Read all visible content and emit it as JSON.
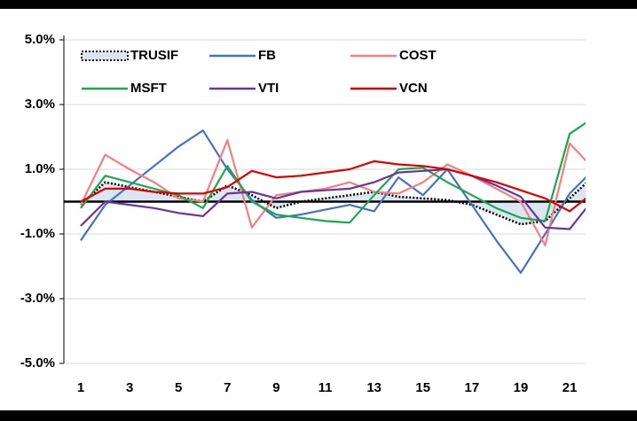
{
  "chart_data": {
    "type": "line",
    "x": [
      1,
      2,
      3,
      4,
      5,
      6,
      7,
      8,
      9,
      10,
      11,
      12,
      13,
      14,
      15,
      16,
      17,
      18,
      19,
      20,
      21,
      22
    ],
    "xlim": [
      0.31,
      21.65
    ],
    "xticks": [
      1,
      3,
      5,
      7,
      9,
      11,
      13,
      15,
      17,
      19,
      21
    ],
    "ylim": [
      -5,
      5
    ],
    "yticks": [
      {
        "value": -5,
        "label": "-5.0%"
      },
      {
        "value": -3,
        "label": "-3.0%"
      },
      {
        "value": -1,
        "label": "-1.0%"
      },
      {
        "value": 1,
        "label": "1.0%"
      },
      {
        "value": 3,
        "label": "3.0%"
      },
      {
        "value": 5,
        "label": "5.0%"
      }
    ],
    "grid": true,
    "series": [
      {
        "name": "TRUSIF",
        "color": "#000000",
        "fill": "#dce6f2",
        "dash": "dotted",
        "values": [
          -0.1,
          0.6,
          0.45,
          0.3,
          0.15,
          0.0,
          0.5,
          0.2,
          -0.2,
          0.0,
          0.1,
          0.2,
          0.3,
          0.15,
          0.1,
          0.05,
          -0.1,
          -0.4,
          -0.7,
          -0.6,
          0.1,
          0.8
        ]
      },
      {
        "name": "FB",
        "color": "#4472c4",
        "values": [
          -1.2,
          -0.1,
          0.5,
          1.1,
          1.7,
          2.2,
          1.0,
          0.05,
          -0.5,
          -0.4,
          -0.25,
          -0.1,
          -0.3,
          0.75,
          0.2,
          1.0,
          -0.1,
          -1.2,
          -2.2,
          -1.0,
          0.25,
          1.0
        ]
      },
      {
        "name": "COST",
        "color": "#f4807d",
        "values": [
          -0.1,
          1.45,
          1.0,
          0.6,
          0.1,
          0.0,
          1.9,
          -0.8,
          0.2,
          0.3,
          0.4,
          0.6,
          0.3,
          0.25,
          0.6,
          1.15,
          0.8,
          0.4,
          0.0,
          -1.35,
          1.8,
          1.0
        ]
      },
      {
        "name": "MSFT",
        "color": "#1aa84f",
        "values": [
          -0.2,
          0.8,
          0.6,
          0.4,
          0.2,
          -0.2,
          1.1,
          0.0,
          -0.4,
          -0.5,
          -0.6,
          -0.65,
          0.2,
          1.0,
          1.05,
          0.6,
          0.2,
          -0.2,
          -0.5,
          -0.6,
          2.1,
          2.6
        ]
      },
      {
        "name": "VTI",
        "color": "#7030a0",
        "values": [
          -0.75,
          0.0,
          -0.1,
          -0.2,
          -0.35,
          -0.45,
          0.25,
          0.3,
          0.1,
          0.3,
          0.35,
          0.4,
          0.6,
          0.9,
          0.95,
          1.0,
          0.8,
          0.5,
          0.15,
          -0.8,
          -0.85,
          0.1
        ]
      },
      {
        "name": "VCN",
        "color": "#e00000",
        "values": [
          0.0,
          0.4,
          0.4,
          0.3,
          0.25,
          0.25,
          0.45,
          0.95,
          0.75,
          0.8,
          0.9,
          1.0,
          1.25,
          1.15,
          1.1,
          1.0,
          0.8,
          0.6,
          0.35,
          0.1,
          -0.3,
          0.3
        ]
      }
    ]
  }
}
